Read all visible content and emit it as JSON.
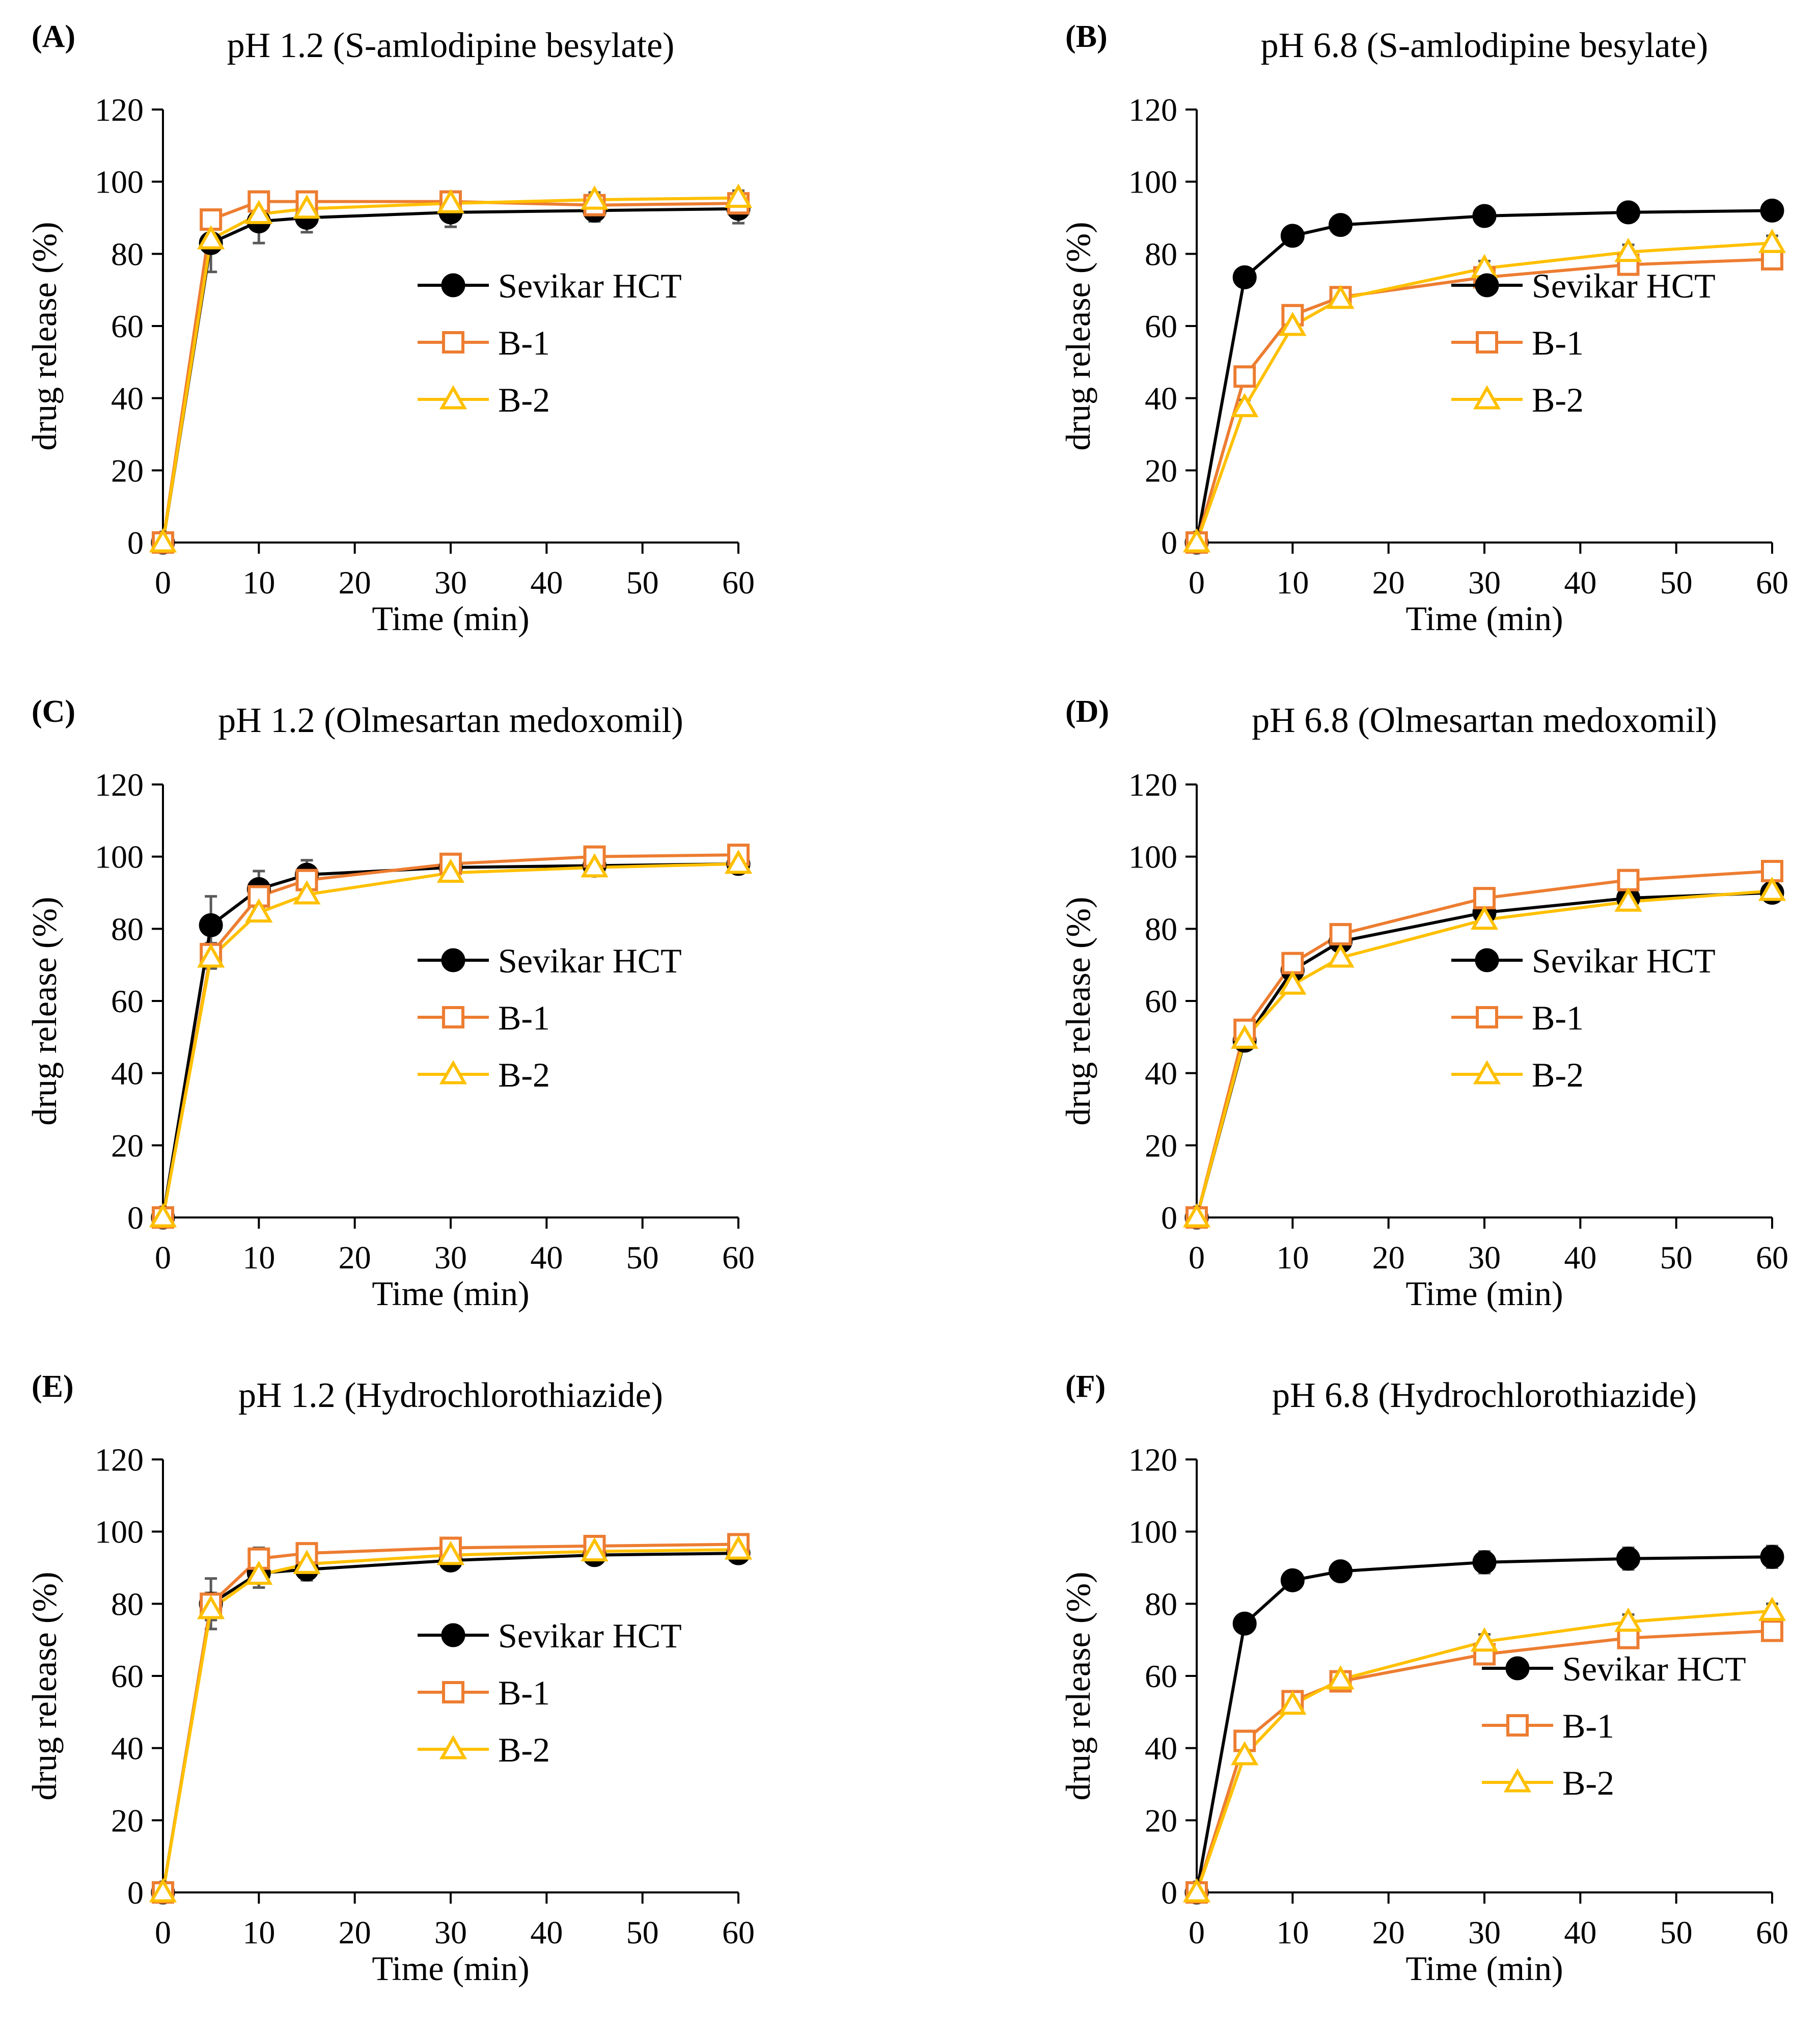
{
  "colors": {
    "sevikar": "#000000",
    "b1": "#ED7D31",
    "b2": "#FFC000",
    "errorbar": "#595959"
  },
  "chart_data": [
    {
      "panel": "(A)",
      "type": "line",
      "title": "pH 1.2 (S-amlodipine besylate)",
      "xlabel": "Time (min)",
      "ylabel": "drug release (%)",
      "xlim": [
        0,
        60
      ],
      "ylim": [
        0,
        120
      ],
      "xticks": [
        0,
        10,
        20,
        30,
        40,
        50,
        60
      ],
      "yticks": [
        0,
        20,
        40,
        60,
        80,
        100,
        120
      ],
      "x": [
        0,
        5,
        10,
        15,
        30,
        45,
        60
      ],
      "legend": "center-right",
      "series": [
        {
          "name": "Sevikar HCT",
          "marker": "circle",
          "values": [
            0,
            83,
            89,
            90,
            91.5,
            92,
            92.5
          ],
          "errors": [
            0,
            8,
            6,
            4,
            4,
            3,
            4
          ]
        },
        {
          "name": "B-1",
          "marker": "square",
          "values": [
            0,
            89.5,
            94.5,
            94.5,
            94.5,
            93.5,
            94
          ],
          "errors": [
            0,
            2,
            2,
            2,
            2,
            2,
            2
          ]
        },
        {
          "name": "B-2",
          "marker": "triangle",
          "values": [
            0,
            84,
            91,
            92.5,
            94,
            95,
            95.5
          ],
          "errors": [
            0,
            3,
            3,
            2,
            2,
            2,
            2
          ]
        }
      ]
    },
    {
      "panel": "(B)",
      "type": "line",
      "title": "pH 6.8 (S-amlodipine besylate)",
      "xlabel": "Time (min)",
      "ylabel": "drug release (%)",
      "xlim": [
        0,
        60
      ],
      "ylim": [
        0,
        120
      ],
      "xticks": [
        0,
        10,
        20,
        30,
        40,
        50,
        60
      ],
      "yticks": [
        0,
        20,
        40,
        60,
        80,
        100,
        120
      ],
      "x": [
        0,
        5,
        10,
        15,
        30,
        45,
        60
      ],
      "legend": "center-right",
      "series": [
        {
          "name": "Sevikar HCT",
          "marker": "circle",
          "values": [
            0,
            73.5,
            85,
            88,
            90.5,
            91.5,
            92
          ],
          "errors": [
            0,
            2,
            1,
            1,
            1,
            1,
            1
          ]
        },
        {
          "name": "B-1",
          "marker": "square",
          "values": [
            0,
            46,
            63,
            68,
            73.5,
            77,
            78.5
          ],
          "errors": [
            0,
            2,
            2,
            2,
            2,
            2,
            2
          ]
        },
        {
          "name": "B-2",
          "marker": "triangle",
          "values": [
            0,
            37.5,
            60,
            67.5,
            76,
            80.5,
            83
          ],
          "errors": [
            0,
            2,
            2,
            2,
            2,
            2,
            2
          ]
        }
      ]
    },
    {
      "panel": "(C)",
      "type": "line",
      "title": "pH 1.2 (Olmesartan medoxomil)",
      "xlabel": "Time (min)",
      "ylabel": "drug release (%)",
      "xlim": [
        0,
        60
      ],
      "ylim": [
        0,
        120
      ],
      "xticks": [
        0,
        10,
        20,
        30,
        40,
        50,
        60
      ],
      "yticks": [
        0,
        20,
        40,
        60,
        80,
        100,
        120
      ],
      "x": [
        0,
        5,
        10,
        15,
        30,
        45,
        60
      ],
      "legend": "center-right",
      "series": [
        {
          "name": "Sevikar HCT",
          "marker": "circle",
          "values": [
            0,
            81,
            91,
            95,
            97,
            97.5,
            98
          ],
          "errors": [
            0,
            8,
            5,
            4,
            2,
            2,
            2
          ]
        },
        {
          "name": "B-1",
          "marker": "square",
          "values": [
            0,
            73,
            89,
            93.5,
            98,
            100,
            100.5
          ],
          "errors": [
            0,
            3,
            3,
            2,
            2,
            1,
            1
          ]
        },
        {
          "name": "B-2",
          "marker": "triangle",
          "values": [
            0,
            72,
            84.5,
            89.5,
            95.5,
            97,
            98
          ],
          "errors": [
            0,
            3,
            2,
            2,
            2,
            1,
            1
          ]
        }
      ]
    },
    {
      "panel": "(D)",
      "type": "line",
      "title": "pH 6.8 (Olmesartan medoxomil)",
      "xlabel": "Time (min)",
      "ylabel": "drug release (%)",
      "xlim": [
        0,
        60
      ],
      "ylim": [
        0,
        120
      ],
      "xticks": [
        0,
        10,
        20,
        30,
        40,
        50,
        60
      ],
      "yticks": [
        0,
        20,
        40,
        60,
        80,
        100,
        120
      ],
      "x": [
        0,
        5,
        10,
        15,
        30,
        45,
        60
      ],
      "legend": "center-right",
      "series": [
        {
          "name": "Sevikar HCT",
          "marker": "circle",
          "values": [
            0,
            49,
            68.5,
            76.5,
            84.5,
            88.5,
            90
          ],
          "errors": [
            0,
            2,
            2,
            2,
            2,
            2,
            2
          ]
        },
        {
          "name": "B-1",
          "marker": "square",
          "values": [
            0,
            52,
            70.5,
            78.5,
            88.5,
            93.5,
            96
          ],
          "errors": [
            0,
            2,
            2,
            2,
            2,
            2,
            2
          ]
        },
        {
          "name": "B-2",
          "marker": "triangle",
          "values": [
            0,
            49.5,
            64.5,
            72,
            82.5,
            87.5,
            90.5
          ],
          "errors": [
            0,
            2,
            2,
            2,
            2,
            2,
            2
          ]
        }
      ]
    },
    {
      "panel": "(E)",
      "type": "line",
      "title": "pH 1.2 (Hydrochlorothiazide)",
      "xlabel": "Time (min)",
      "ylabel": "drug release (%)",
      "xlim": [
        0,
        60
      ],
      "ylim": [
        0,
        120
      ],
      "xticks": [
        0,
        10,
        20,
        30,
        40,
        50,
        60
      ],
      "yticks": [
        0,
        20,
        40,
        60,
        80,
        100,
        120
      ],
      "x": [
        0,
        5,
        10,
        15,
        30,
        45,
        60
      ],
      "legend": "center-right",
      "series": [
        {
          "name": "Sevikar HCT",
          "marker": "circle",
          "values": [
            0,
            80,
            88.5,
            89.5,
            92,
            93.5,
            94
          ],
          "errors": [
            0,
            7,
            4,
            3,
            2,
            2,
            2
          ]
        },
        {
          "name": "B-1",
          "marker": "square",
          "values": [
            0,
            80,
            92.5,
            94,
            95.5,
            96,
            96.5
          ],
          "errors": [
            0,
            3,
            3,
            2,
            2,
            2,
            2
          ]
        },
        {
          "name": "B-2",
          "marker": "triangle",
          "values": [
            0,
            78.5,
            88,
            91,
            93.5,
            94.5,
            95
          ],
          "errors": [
            0,
            3,
            2,
            2,
            2,
            2,
            2
          ]
        }
      ]
    },
    {
      "panel": "(F)",
      "type": "line",
      "title": "pH 6.8 (Hydrochlorothiazide)",
      "xlabel": "Time (min)",
      "ylabel": "drug release (%)",
      "xlim": [
        0,
        60
      ],
      "ylim": [
        0,
        120
      ],
      "xticks": [
        0,
        10,
        20,
        30,
        40,
        50,
        60
      ],
      "yticks": [
        0,
        20,
        40,
        60,
        80,
        100,
        120
      ],
      "x": [
        0,
        5,
        10,
        15,
        30,
        45,
        60
      ],
      "legend": "center-right",
      "series": [
        {
          "name": "Sevikar HCT",
          "marker": "circle",
          "values": [
            0,
            74.5,
            86.5,
            89,
            91.5,
            92.5,
            93
          ],
          "errors": [
            0,
            2,
            2,
            2,
            3,
            3,
            3
          ]
        },
        {
          "name": "B-1",
          "marker": "square",
          "values": [
            0,
            42,
            53,
            58.5,
            66,
            70.5,
            72.5
          ],
          "errors": [
            0,
            2,
            2,
            2,
            2,
            2,
            2
          ]
        },
        {
          "name": "B-2",
          "marker": "triangle",
          "values": [
            0,
            38,
            52,
            59,
            69.5,
            75,
            78
          ],
          "errors": [
            0,
            2,
            2,
            2,
            2,
            2,
            2
          ]
        }
      ]
    }
  ]
}
